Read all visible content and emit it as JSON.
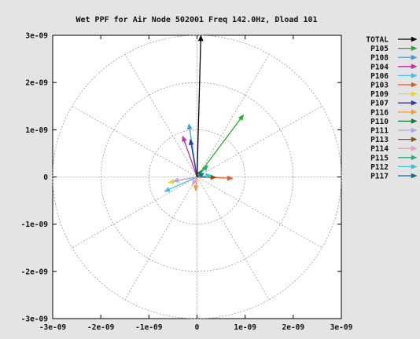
{
  "chart_data": {
    "type": "polar-vector",
    "title": "Wet PPF for Air Node 502001 Freq 142.0Hz, Dload 101",
    "xlabel": "",
    "ylabel": "",
    "xlim": [
      -3e-09,
      3e-09
    ],
    "ylim": [
      -3e-09,
      3e-09
    ],
    "x_ticks": [
      "-3e-09",
      "-2e-09",
      "-1e-09",
      "0",
      "1e-09",
      "2e-09",
      "3e-09"
    ],
    "y_ticks": [
      "3e-09",
      "2e-09",
      "1e-09",
      "0",
      "-1e-09",
      "-2e-09",
      "-3e-09"
    ],
    "grid": true,
    "grid_circles": [
      1e-09,
      2e-09,
      3e-09
    ],
    "legend_position": "right",
    "series": [
      {
        "name": "TOTAL",
        "color": "#000000",
        "x": 8e-11,
        "y": 3e-09
      },
      {
        "name": "P105",
        "color": "#2eaa2e",
        "x": 9.7e-10,
        "y": 1.32e-09
      },
      {
        "name": "P108",
        "color": "#3a9fde",
        "x": -1.7e-10,
        "y": 1.13e-09
      },
      {
        "name": "P104",
        "color": "#c030a8",
        "x": -3e-10,
        "y": 8.7e-10
      },
      {
        "name": "P106",
        "color": "#44bde8",
        "x": -6.8e-10,
        "y": -3.1e-10
      },
      {
        "name": "P103",
        "color": "#e05a2a",
        "x": 7.5e-10,
        "y": -3e-11
      },
      {
        "name": "P109",
        "color": "#e6d62a",
        "x": -6e-10,
        "y": -1.2e-10
      },
      {
        "name": "P107",
        "color": "#303bb0",
        "x": -1.4e-10,
        "y": 8e-10
      },
      {
        "name": "P116",
        "color": "#e8a040",
        "x": -3e-11,
        "y": -3e-10
      },
      {
        "name": "P110",
        "color": "#0e7d3a",
        "x": 1e-10,
        "y": 1.4e-10
      },
      {
        "name": "P111",
        "color": "#b9a5e8",
        "x": -5e-10,
        "y": -9e-11
      },
      {
        "name": "P113",
        "color": "#8a5020",
        "x": 4e-10,
        "y": -1e-11
      },
      {
        "name": "P114",
        "color": "#e89ac8",
        "x": -1e-10,
        "y": -1.8e-10
      },
      {
        "name": "P115",
        "color": "#2cb07a",
        "x": 2.3e-10,
        "y": 2.5e-10
      },
      {
        "name": "P112",
        "color": "#40c0d0",
        "x": 3e-10,
        "y": 4e-11
      },
      {
        "name": "P117",
        "color": "#1a6e90",
        "x": 1.5e-10,
        "y": 8e-11
      }
    ]
  }
}
